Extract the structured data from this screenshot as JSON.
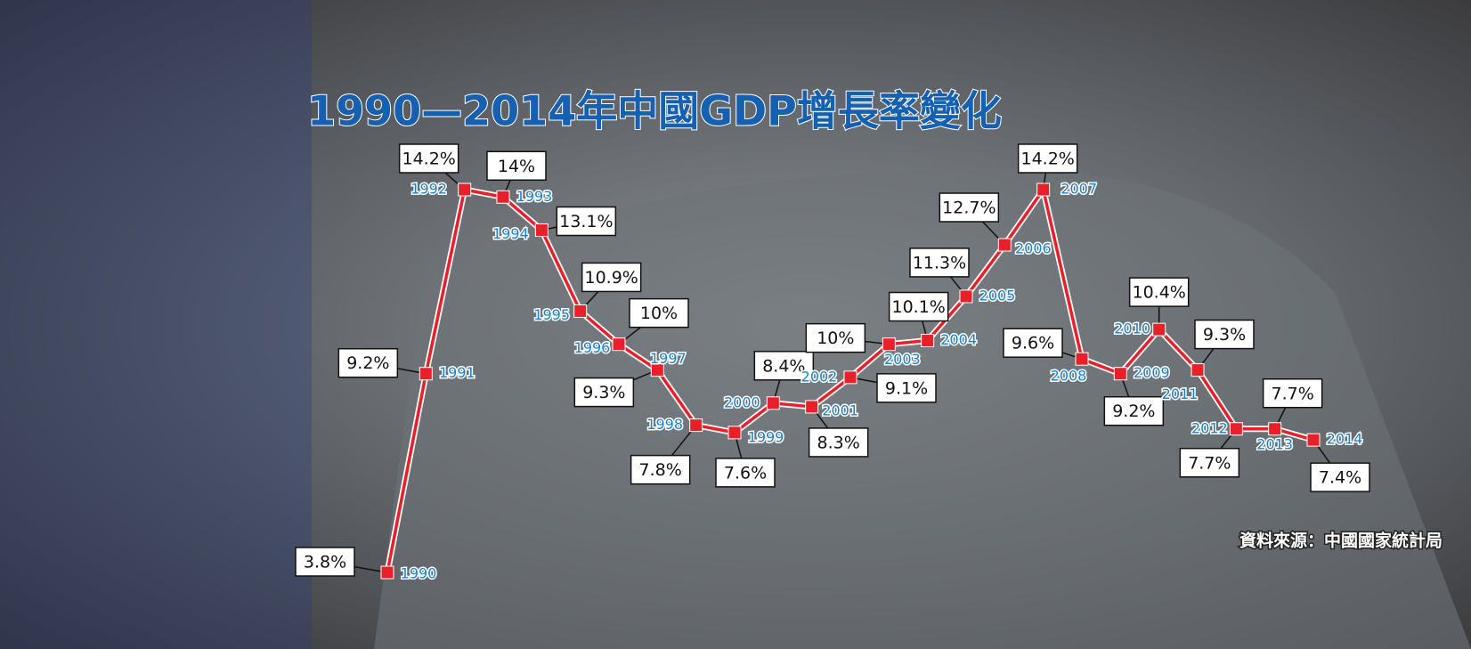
{
  "chart_data": {
    "type": "line",
    "title": "1990—2014年中國GDP增長率變化",
    "source": "資料來源：中國國家統計局",
    "categories": [
      "1990",
      "1991",
      "1992",
      "1993",
      "1994",
      "1995",
      "1996",
      "1997",
      "1998",
      "1999",
      "2000",
      "2001",
      "2002",
      "2003",
      "2004",
      "2005",
      "2006",
      "2007",
      "2008",
      "2009",
      "2010",
      "2011",
      "2012",
      "2013",
      "2014"
    ],
    "values": [
      3.8,
      9.2,
      14.2,
      14,
      13.1,
      10.9,
      10,
      9.3,
      7.8,
      7.6,
      8.4,
      8.3,
      9.1,
      10,
      10.1,
      11.3,
      12.7,
      14.2,
      9.6,
      9.2,
      10.4,
      9.3,
      7.7,
      7.7,
      7.4
    ],
    "value_labels": [
      "3.8%",
      "9.2%",
      "14.2%",
      "14%",
      "13.1%",
      "10.9%",
      "10%",
      "9.3%",
      "7.8%",
      "7.6%",
      "8.4%",
      "8.3%",
      "9.1%",
      "10%",
      "10.1%",
      "11.3%",
      "12.7%",
      "14.2%",
      "9.6%",
      "9.2%",
      "10.4%",
      "9.3%",
      "7.7%",
      "7.7%",
      "7.4%"
    ],
    "color": "#e8202a"
  }
}
